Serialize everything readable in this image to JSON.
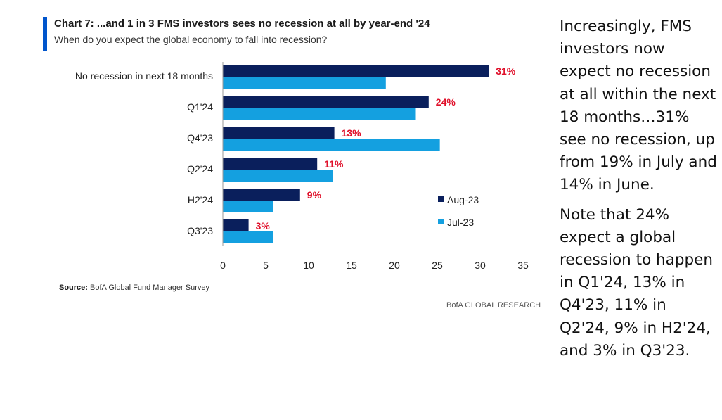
{
  "header": {
    "title": "Chart 7: ...and 1 in 3 FMS investors sees no recession at all by year-end '24",
    "subtitle": "When do you expect the global economy to fall into recession?"
  },
  "footer": {
    "source_label": "Source:",
    "source_text": "BofA Global Fund Manager Survey",
    "brand": "BofA GLOBAL RESEARCH"
  },
  "commentary": {
    "paragraph1": "Increasingly, FMS investors now expect no recession at all within the next 18 months…31% see no recession, up from 19% in July and 14% in June.",
    "paragraph2": "Note that 24% expect a global recession to happen in Q1'24, 13% in Q4'23, 11% in Q2'24, 9% in H2'24, and 3% in Q3'23."
  },
  "colors": {
    "aug": "#0a1f5c",
    "jul": "#14a0e0",
    "data_label": "#e0102a",
    "accent": "#0055cc"
  },
  "chart_data": {
    "type": "bar",
    "orientation": "horizontal",
    "categories": [
      "No recession in next 18 months",
      "Q1'24",
      "Q4'23",
      "Q2'24",
      "H2'24",
      "Q3'23"
    ],
    "series": [
      {
        "name": "Aug-23",
        "values": [
          31,
          24,
          13,
          11,
          9,
          3
        ]
      },
      {
        "name": "Jul-23",
        "values": [
          19,
          22.5,
          25.3,
          12.8,
          5.9,
          5.9
        ]
      }
    ],
    "data_labels": [
      "31%",
      "24%",
      "13%",
      "11%",
      "9%",
      "3%"
    ],
    "xlim": [
      0,
      35
    ],
    "xticks": [
      0,
      5,
      10,
      15,
      20,
      25,
      30,
      35
    ],
    "legend_position": "right",
    "grid": false
  }
}
